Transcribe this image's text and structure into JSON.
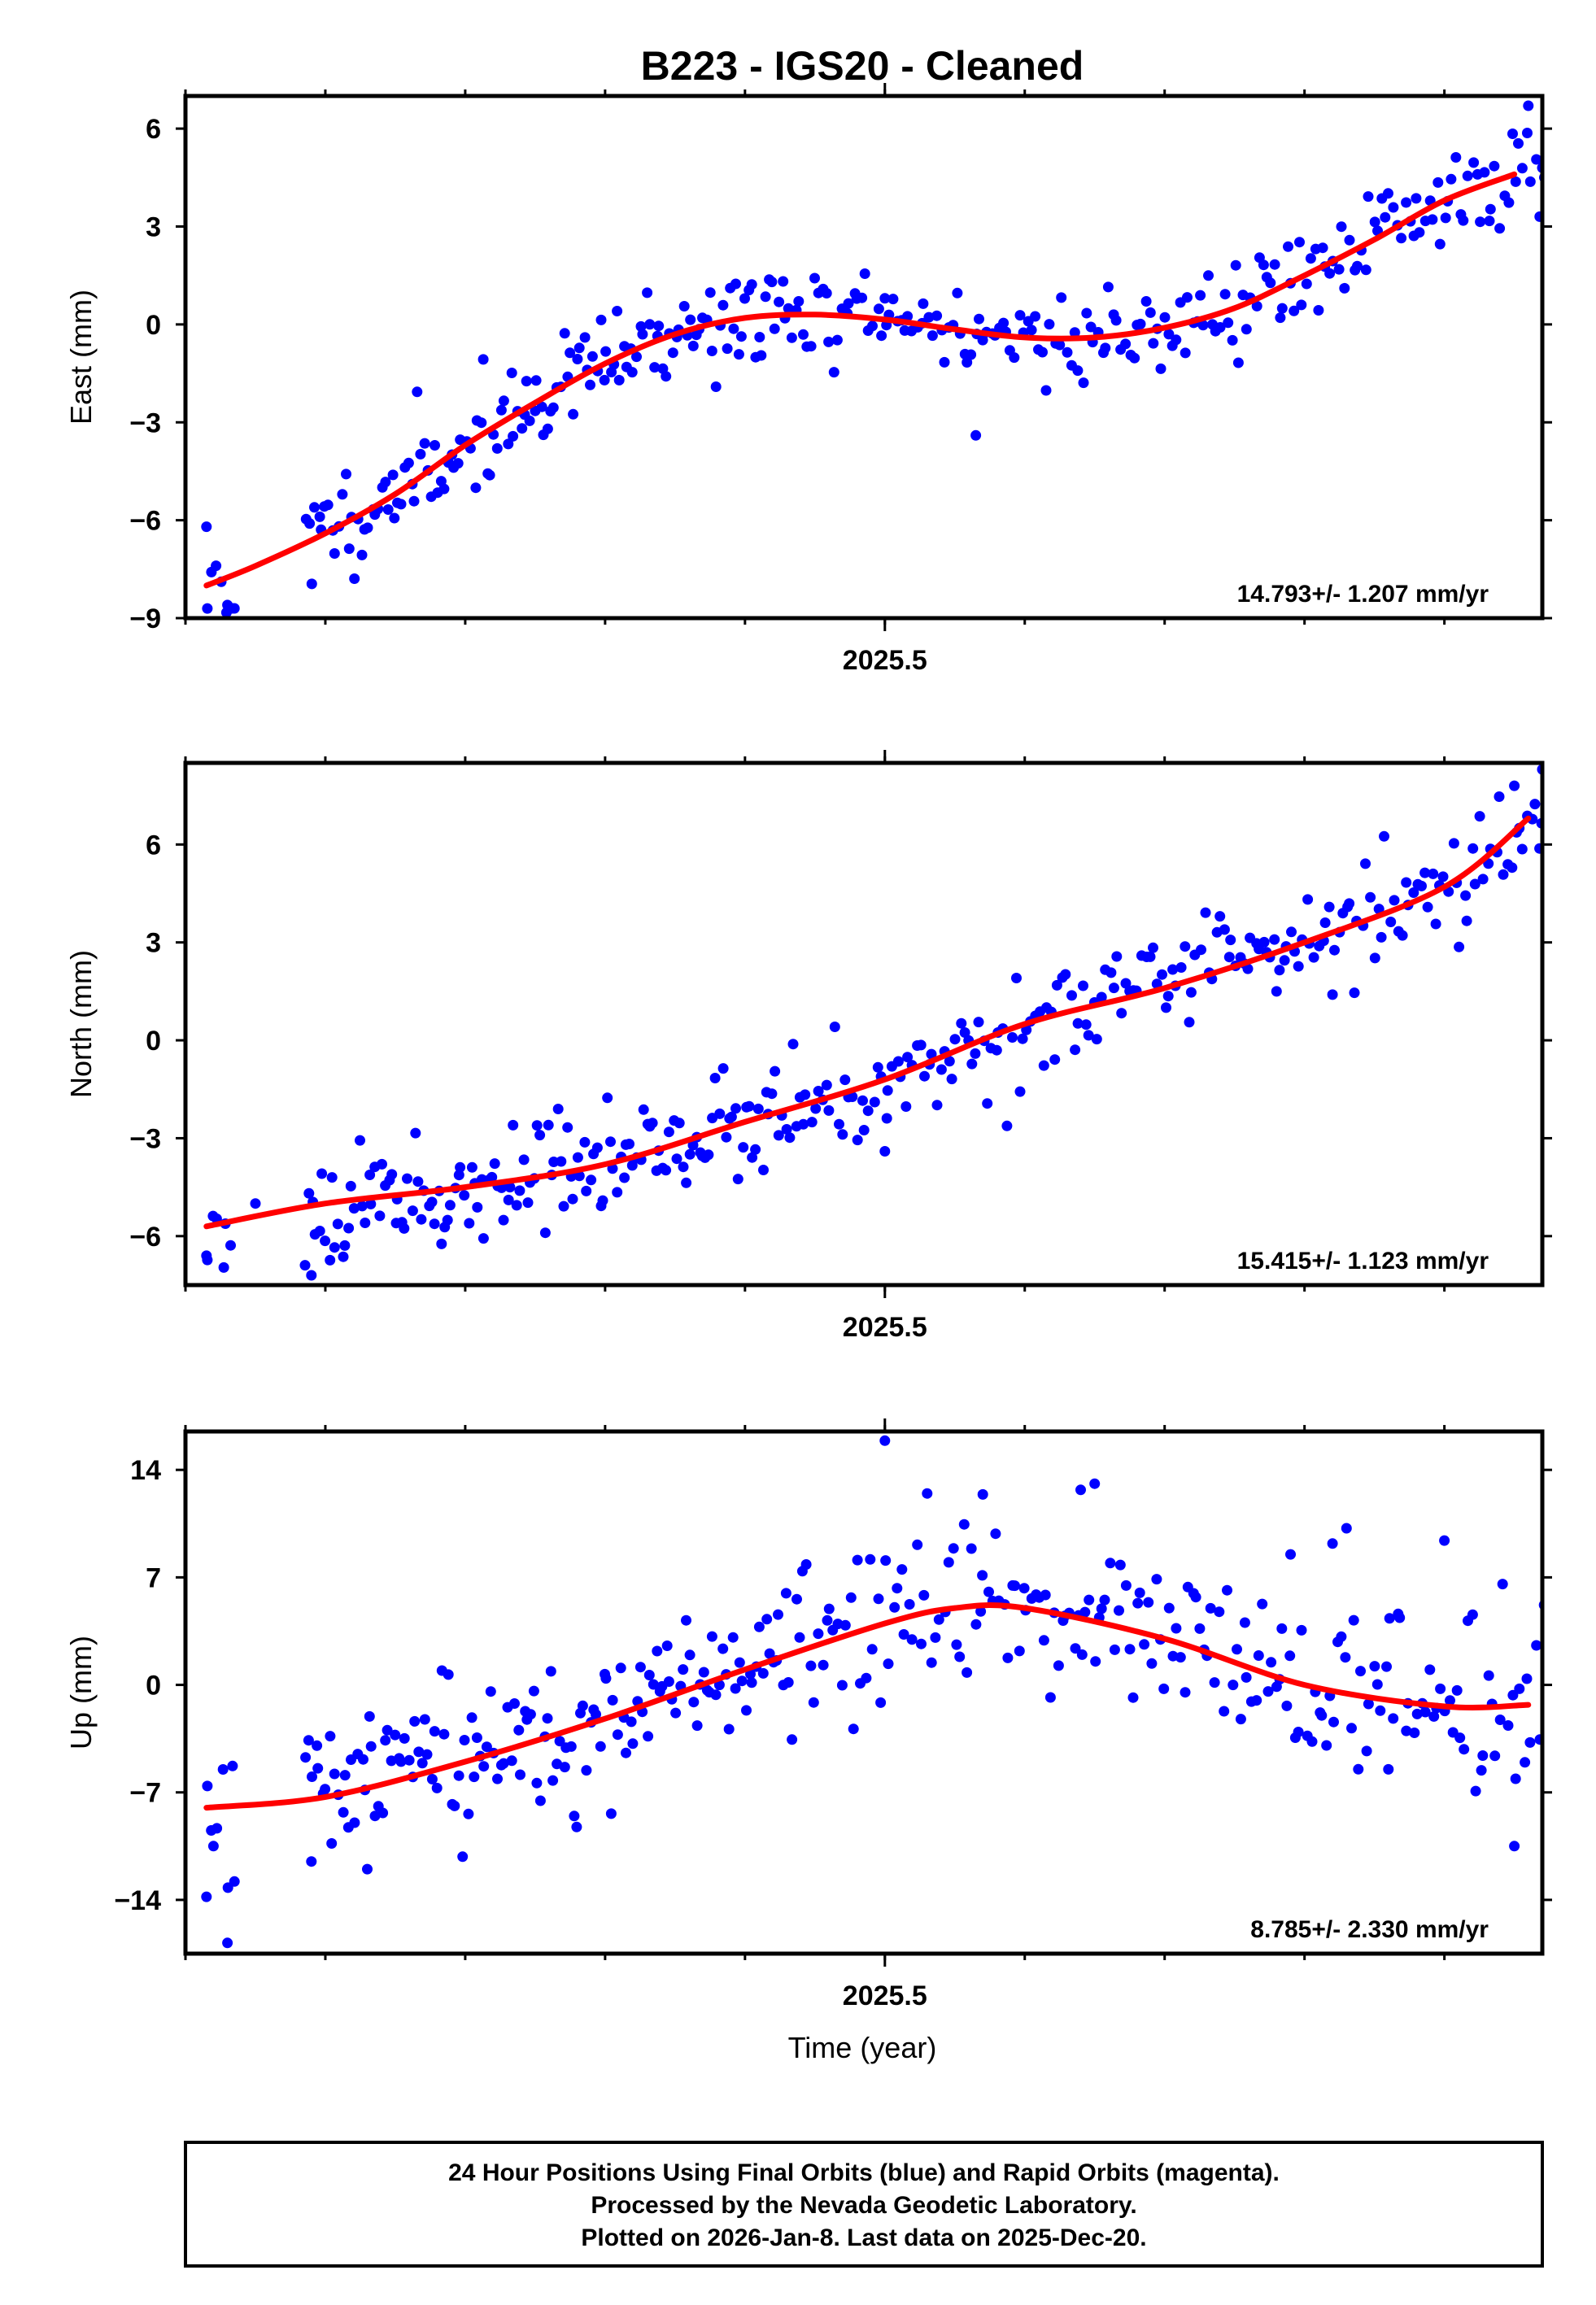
{
  "title": "B223  - IGS20 - Cleaned",
  "xlabel": "Time (year)",
  "footer": {
    "line1": "24 Hour Positions Using Final Orbits (blue) and Rapid Orbits (magenta).",
    "line2": "Processed by the Nevada Geodetic Laboratory.",
    "line3": "Plotted on 2026-Jan-8. Last data on 2025-Dec-20."
  },
  "colors": {
    "points": "#0000ff",
    "fit": "#ff0000",
    "frame": "#000000"
  },
  "chart_data": [
    {
      "type": "scatter",
      "component": "East",
      "ylabel": "East (mm)",
      "xlim": [
        2025.0,
        2025.97
      ],
      "ylim": [
        -9,
        7
      ],
      "xticks_major": [
        2025.5
      ],
      "xtick_labels": [
        "2025.5"
      ],
      "xticks_minor": [
        2025.0,
        2025.1,
        2025.2,
        2025.3,
        2025.4,
        2025.5,
        2025.6,
        2025.7,
        2025.8,
        2025.9
      ],
      "yticks": [
        -9,
        -6,
        -3,
        0,
        3,
        6
      ],
      "ytick_labels": [
        "−9",
        "−6",
        "−3",
        "0",
        "3",
        "6"
      ],
      "rate": "14.793+/- 1.207 mm/yr",
      "fit": {
        "x": [
          2025.015,
          2025.05,
          2025.1,
          2025.15,
          2025.2,
          2025.25,
          2025.3,
          2025.35,
          2025.4,
          2025.45,
          2025.5,
          2025.55,
          2025.6,
          2025.65,
          2025.7,
          2025.75,
          2025.8,
          2025.85,
          2025.9,
          2025.95
        ],
        "y": [
          -8.0,
          -7.4,
          -6.4,
          -5.2,
          -3.7,
          -2.4,
          -1.2,
          -0.3,
          0.2,
          0.3,
          0.15,
          -0.15,
          -0.4,
          -0.4,
          -0.1,
          0.5,
          1.5,
          2.6,
          3.8,
          4.6
        ]
      },
      "points": {
        "trend": {
          "x": [
            2025.015,
            2025.05,
            2025.1,
            2025.15,
            2025.2,
            2025.25,
            2025.3,
            2025.35,
            2025.4,
            2025.45,
            2025.5,
            2025.55,
            2025.6,
            2025.65,
            2025.7,
            2025.75,
            2025.8,
            2025.85,
            2025.9,
            2025.95
          ],
          "y": [
            -8.0,
            -7.4,
            -6.4,
            -5.2,
            -3.7,
            -2.4,
            -1.2,
            -0.3,
            0.2,
            0.3,
            0.15,
            -0.15,
            -0.4,
            -0.4,
            -0.1,
            0.5,
            1.5,
            2.6,
            3.8,
            4.6
          ]
        },
        "segments": [
          [
            2025.015,
            2025.035
          ],
          [
            2025.085,
            2025.44
          ],
          [
            2025.44,
            2025.975
          ]
        ],
        "n": [
          6,
          150,
          190
        ],
        "noise": 0.75,
        "seed": 11,
        "extra": [
          [
            2025.015,
            -6.2
          ],
          [
            2025.03,
            -8.6
          ],
          [
            2025.035,
            -8.7
          ],
          [
            2025.5,
            0.8
          ],
          [
            2025.565,
            -3.4
          ],
          [
            2025.96,
            6.7
          ],
          [
            2025.97,
            4.8
          ]
        ]
      }
    },
    {
      "type": "scatter",
      "component": "North",
      "ylabel": "North (mm)",
      "xlim": [
        2025.0,
        2025.97
      ],
      "ylim": [
        -7.5,
        8.5
      ],
      "xticks_major": [
        2025.5
      ],
      "xtick_labels": [
        "2025.5"
      ],
      "xticks_minor": [
        2025.0,
        2025.1,
        2025.2,
        2025.3,
        2025.4,
        2025.5,
        2025.6,
        2025.7,
        2025.8,
        2025.9
      ],
      "yticks": [
        -6,
        -3,
        0,
        3,
        6
      ],
      "ytick_labels": [
        "−6",
        "−3",
        "0",
        "3",
        "6"
      ],
      "rate": "15.415+/- 1.123 mm/yr",
      "fit": {
        "x": [
          2025.015,
          2025.1,
          2025.2,
          2025.3,
          2025.4,
          2025.5,
          2025.6,
          2025.7,
          2025.8,
          2025.9,
          2025.96
        ],
        "y": [
          -5.7,
          -5.0,
          -4.5,
          -3.8,
          -2.5,
          -1.2,
          0.5,
          1.6,
          3.0,
          4.7,
          6.8
        ]
      },
      "points": {
        "trend": {
          "x": [
            2025.015,
            2025.1,
            2025.2,
            2025.3,
            2025.4,
            2025.5,
            2025.6,
            2025.7,
            2025.8,
            2025.9,
            2025.96
          ],
          "y": [
            -5.7,
            -5.0,
            -4.5,
            -3.8,
            -2.5,
            -1.2,
            0.5,
            1.6,
            3.0,
            4.7,
            6.8
          ]
        },
        "segments": [
          [
            2025.015,
            2025.035
          ],
          [
            2025.085,
            2025.44
          ],
          [
            2025.44,
            2025.975
          ]
        ],
        "n": [
          6,
          150,
          190
        ],
        "noise": 0.8,
        "seed": 23,
        "extra": [
          [
            2025.015,
            -6.6
          ],
          [
            2025.09,
            -7.2
          ],
          [
            2025.05,
            -5.0
          ],
          [
            2025.5,
            -3.4
          ],
          [
            2025.78,
            1.5
          ],
          [
            2025.82,
            1.4
          ],
          [
            2025.97,
            8.3
          ],
          [
            2025.95,
            7.8
          ]
        ]
      }
    },
    {
      "type": "scatter",
      "component": "Up",
      "ylabel": "Up (mm)",
      "xlim": [
        2025.0,
        2025.97
      ],
      "ylim": [
        -17.5,
        16.5
      ],
      "xticks_major": [
        2025.5
      ],
      "xtick_labels": [
        "2025.5"
      ],
      "xticks_minor": [
        2025.0,
        2025.1,
        2025.2,
        2025.3,
        2025.4,
        2025.5,
        2025.6,
        2025.7,
        2025.8,
        2025.9
      ],
      "yticks": [
        -14,
        -7,
        0,
        7,
        14
      ],
      "ytick_labels": [
        "−14",
        "−7",
        "0",
        "7",
        "14"
      ],
      "rate": "8.785+/- 2.330 mm/yr",
      "fit": {
        "x": [
          2025.015,
          2025.1,
          2025.2,
          2025.3,
          2025.4,
          2025.5,
          2025.55,
          2025.6,
          2025.7,
          2025.8,
          2025.9,
          2025.96
        ],
        "y": [
          -8.0,
          -7.3,
          -5.0,
          -2.2,
          1.0,
          4.0,
          5.0,
          5.0,
          3.0,
          0.0,
          -1.4,
          -1.3
        ]
      },
      "points": {
        "trend": {
          "x": [
            2025.015,
            2025.1,
            2025.2,
            2025.3,
            2025.4,
            2025.5,
            2025.55,
            2025.6,
            2025.7,
            2025.8,
            2025.9,
            2025.96
          ],
          "y": [
            -8.0,
            -7.3,
            -5.0,
            -2.2,
            1.0,
            4.0,
            5.0,
            5.0,
            3.0,
            0.0,
            -1.4,
            -1.3
          ]
        },
        "segments": [
          [
            2025.015,
            2025.035
          ],
          [
            2025.085,
            2025.44
          ],
          [
            2025.44,
            2025.975
          ]
        ],
        "n": [
          6,
          150,
          190
        ],
        "noise": 2.6,
        "seed": 37,
        "extra": [
          [
            2025.015,
            -13.8
          ],
          [
            2025.02,
            -10.5
          ],
          [
            2025.03,
            -16.8
          ],
          [
            2025.035,
            -12.8
          ],
          [
            2025.5,
            15.9
          ],
          [
            2025.65,
            13.1
          ],
          [
            2025.64,
            12.7
          ],
          [
            2025.57,
            12.4
          ],
          [
            2025.79,
            8.5
          ],
          [
            2025.82,
            9.2
          ],
          [
            2025.83,
            10.2
          ],
          [
            2025.9,
            9.4
          ],
          [
            2025.95,
            -10.5
          ],
          [
            2025.86,
            -5.5
          ],
          [
            2025.09,
            -11.5
          ],
          [
            2025.13,
            -12.0
          ]
        ]
      }
    }
  ]
}
